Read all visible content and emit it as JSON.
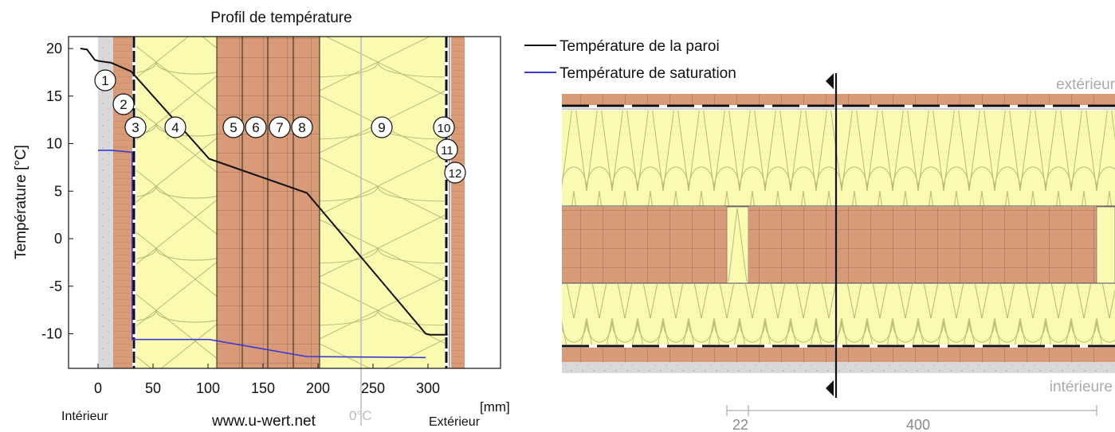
{
  "chart_title": "Profil de température",
  "y_axis_label": "Température [°C]",
  "x_unit": "[mm]",
  "interior_label": "Intérieur",
  "exterior_label": "Extérieur",
  "zero_label": "0°C",
  "website": "www.u-wert.net",
  "legend": {
    "wall_temp": "Température de la paroi",
    "saturation_temp": "Température de saturation"
  },
  "section": {
    "top_label": "extérieur",
    "bottom_label": "intérieure",
    "dim_small": "22",
    "dim_large": "400"
  },
  "colors": {
    "wall_line": "#111111",
    "saturation_line": "#3a3ad6",
    "insulation": "#fafab0",
    "wood": "#d99a78",
    "plaster": "#d9d9d9",
    "zero_line": "#bbbbbb"
  },
  "chart_data": {
    "type": "line",
    "title": "Profil de température",
    "xlabel": "[mm]",
    "ylabel": "Température [°C]",
    "xlim": [
      -22,
      318
    ],
    "ylim": [
      -13.5,
      21
    ],
    "x_ticks": [
      "0",
      "50",
      "100",
      "150",
      "200",
      "250",
      "300"
    ],
    "y_ticks": [
      "20",
      "15",
      "10",
      "5",
      "0",
      "-5",
      "-10"
    ],
    "layer_numbers": [
      "1",
      "2",
      "3",
      "4",
      "5",
      "6",
      "7",
      "8",
      "9",
      "10",
      "11",
      "12"
    ],
    "series": [
      {
        "name": "Température de la paroi",
        "points": [
          [
            -16,
            20
          ],
          [
            -10,
            19.9
          ],
          [
            -3,
            18.8
          ],
          [
            0,
            18.7
          ],
          [
            12,
            18.5
          ],
          [
            30,
            17.6
          ],
          [
            101,
            8.4
          ],
          [
            190,
            4.8
          ],
          [
            298,
            -10
          ],
          [
            302,
            -10.1
          ],
          [
            318,
            -10.1
          ]
        ]
      },
      {
        "name": "Température de saturation",
        "points": [
          [
            0,
            9.3
          ],
          [
            12,
            9.3
          ],
          [
            31,
            9.1
          ],
          [
            31,
            -10.6
          ],
          [
            101,
            -10.6
          ],
          [
            190,
            -12.4
          ],
          [
            298,
            -12.5
          ]
        ]
      }
    ]
  }
}
